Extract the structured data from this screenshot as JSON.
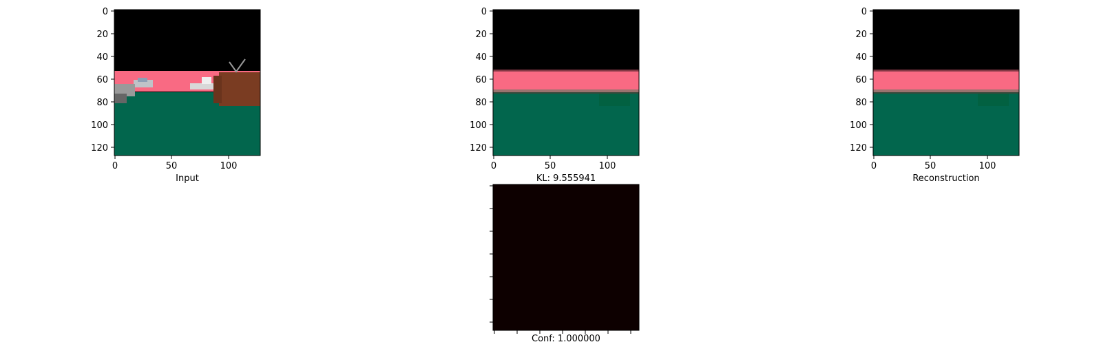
{
  "panels": {
    "input": {
      "xlabel": "Input",
      "yticks": [
        "0",
        "20",
        "40",
        "60",
        "80",
        "100",
        "120"
      ],
      "xticks": [
        "0",
        "50",
        "100"
      ]
    },
    "middle": {
      "xlabel": "KL: 9.555941",
      "yticks": [
        "0",
        "20",
        "40",
        "60",
        "80",
        "100",
        "120"
      ],
      "xticks": [
        "0",
        "50",
        "100"
      ]
    },
    "reconstruction": {
      "xlabel": "Reconstruction",
      "yticks": [
        "0",
        "20",
        "40",
        "60",
        "80",
        "100",
        "120"
      ],
      "xticks": [
        "0",
        "50",
        "100"
      ]
    },
    "confidence": {
      "xlabel": "Conf: 1.000000"
    }
  },
  "colors": {
    "sky": "#000000",
    "road_pink": "#f96a83",
    "ground_green": "#02664d",
    "building_brown": "#7a3c22",
    "conf_map": "#0d0000"
  }
}
